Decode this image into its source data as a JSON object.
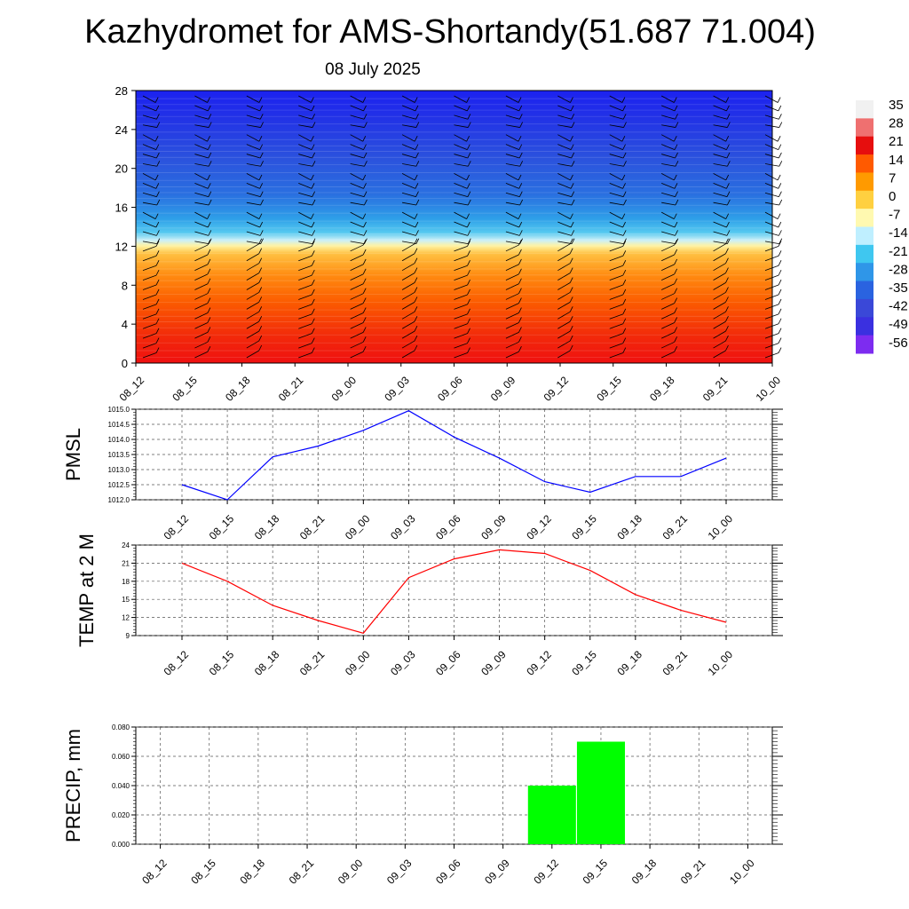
{
  "title": "Kazhydromet for AMS-Shortandy(51.687 71.004)",
  "subtitle": "08 July 2025",
  "time_labels": [
    "08_12",
    "08_15",
    "08_18",
    "08_21",
    "09_00",
    "09_03",
    "09_06",
    "09_09",
    "09_12",
    "09_15",
    "09_18",
    "09_21",
    "10_00"
  ],
  "colors": {
    "pmsl_line": "#0000ff",
    "temp_line": "#ff0000",
    "precip_bar": "#00ff00"
  },
  "chart_data": [
    {
      "type": "heatmap",
      "panel": "cross-section",
      "description": "Temperature by level with wind barbs",
      "x": [
        "08_12",
        "08_15",
        "08_18",
        "08_21",
        "09_00",
        "09_03",
        "09_06",
        "09_09",
        "09_12",
        "09_15",
        "09_18",
        "09_21",
        "10_00"
      ],
      "y_ticks": [
        "0",
        "4",
        "8",
        "12",
        "16",
        "20",
        "24",
        "28"
      ],
      "ylim": [
        0,
        28
      ],
      "colorbar_labels": [
        "35",
        "28",
        "21",
        "14",
        "7",
        "0",
        "-7",
        "-14",
        "-21",
        "-28",
        "-35",
        "-42",
        "-49",
        "-56"
      ],
      "colorbar_colors": [
        "#f1f1f1",
        "#ef7070",
        "#e60e0e",
        "#ff5a00",
        "#ff9a00",
        "#ffd040",
        "#fff9b0",
        "#bfefff",
        "#3fc7f0",
        "#2f96e8",
        "#2a63e0",
        "#3a48d8",
        "#3a30e0",
        "#7d2cf0"
      ]
    },
    {
      "type": "line",
      "panel": "pmsl",
      "ylabel": "PMSL",
      "x": [
        "08_12",
        "08_15",
        "08_18",
        "08_21",
        "09_00",
        "09_03",
        "09_06",
        "09_09",
        "09_12",
        "09_15",
        "09_18",
        "09_21",
        "10_00"
      ],
      "y_ticks": [
        "1012.0",
        "1012.5",
        "1013.0",
        "1013.5",
        "1014.0",
        "1014.5",
        "1015.0"
      ],
      "ylim": [
        1012.0,
        1015.0
      ],
      "series": [
        {
          "values": [
            1012.5,
            1012.0,
            1013.42,
            1013.78,
            1014.3,
            1014.95,
            1014.08,
            1013.38,
            1012.6,
            1012.25,
            1012.77,
            1012.77,
            1013.38
          ]
        }
      ]
    },
    {
      "type": "line",
      "panel": "temp",
      "ylabel": "TEMP at 2 M",
      "x": [
        "08_12",
        "08_15",
        "08_18",
        "08_21",
        "09_00",
        "09_03",
        "09_06",
        "09_09",
        "09_12",
        "09_15",
        "09_18",
        "09_21",
        "10_00"
      ],
      "y_ticks": [
        "9",
        "12",
        "15",
        "18",
        "21",
        "24"
      ],
      "ylim": [
        9,
        24
      ],
      "series": [
        {
          "values": [
            21.0,
            18.0,
            14.0,
            11.5,
            9.4,
            18.6,
            21.7,
            23.2,
            22.6,
            19.8,
            15.8,
            13.2,
            11.2
          ]
        }
      ]
    },
    {
      "type": "bar",
      "panel": "precip",
      "ylabel": "PRECIP, mm",
      "categories": [
        "08_12",
        "08_15",
        "08_18",
        "08_21",
        "09_00",
        "09_03",
        "09_06",
        "09_09",
        "09_12",
        "09_15",
        "09_18",
        "09_21",
        "10_00"
      ],
      "y_ticks": [
        "0.000",
        "0.020",
        "0.040",
        "0.060",
        "0.080"
      ],
      "ylim": [
        0,
        0.08
      ],
      "values": [
        0,
        0,
        0,
        0,
        0,
        0,
        0,
        0,
        0.04,
        0.07,
        0,
        0,
        0
      ]
    }
  ]
}
